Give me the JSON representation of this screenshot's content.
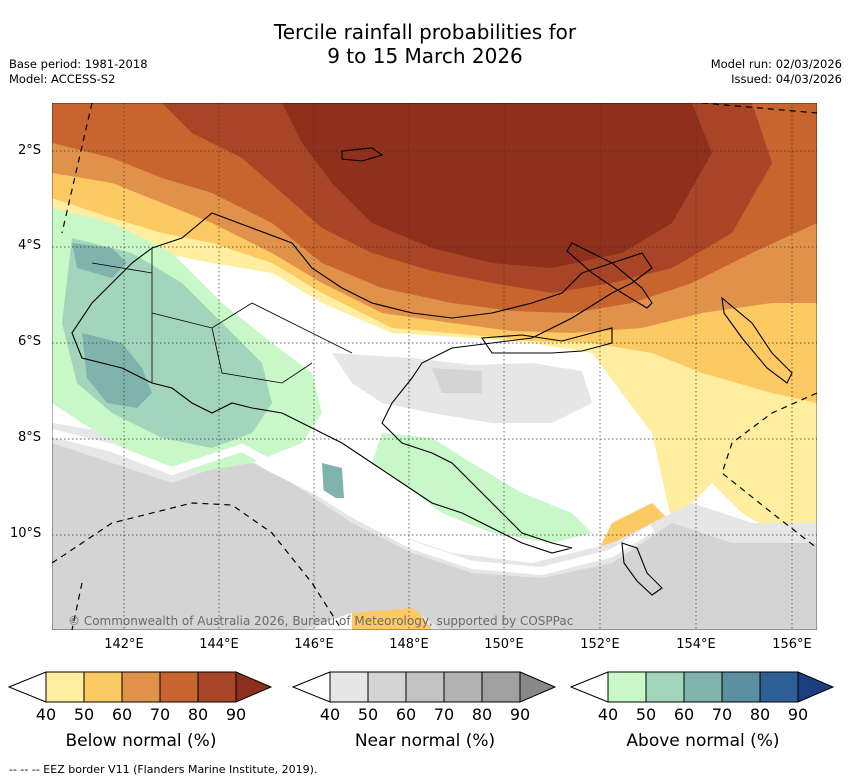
{
  "title_line1": "Tercile rainfall probabilities for",
  "title_line2": "9 to 15 March 2026",
  "base_period": "Base period: 1981-2018",
  "model": "Model: ACCESS-S2",
  "model_run": "Model run: 02/03/2026",
  "issued": "Issued: 04/03/2026",
  "lat_labels": [
    "2°S",
    "4°S",
    "6°S",
    "8°S",
    "10°S"
  ],
  "lon_labels": [
    "142°E",
    "144°E",
    "146°E",
    "148°E",
    "150°E",
    "152°E",
    "154°E",
    "156°E"
  ],
  "credit": "© Commonwealth of Australia 2026, Bureau of Meteorology, supported by COSPPac",
  "colorbars": [
    {
      "title": "Below normal (%)",
      "ticks": [
        "40",
        "50",
        "60",
        "70",
        "80",
        "90"
      ],
      "colors": [
        "#ffffff",
        "#ffeea0",
        "#fdc963",
        "#e0924a",
        "#c8642e",
        "#a84526",
        "#8c2e1c"
      ]
    },
    {
      "title": "Near normal (%)",
      "ticks": [
        "40",
        "50",
        "60",
        "70",
        "80",
        "90"
      ],
      "colors": [
        "#ffffff",
        "#e6e6e6",
        "#d4d4d4",
        "#c3c3c3",
        "#b2b2b2",
        "#a0a0a0",
        "#888888"
      ]
    },
    {
      "title": "Above normal (%)",
      "ticks": [
        "40",
        "50",
        "60",
        "70",
        "80",
        "90"
      ],
      "colors": [
        "#ffffff",
        "#c8f7c8",
        "#a2d5bb",
        "#7fb3ac",
        "#5a8fa0",
        "#2e5f94",
        "#1a3f80"
      ]
    }
  ],
  "footer": "-- -- -- EEZ border V11 (Flanders Marine Institute, 2019)."
}
